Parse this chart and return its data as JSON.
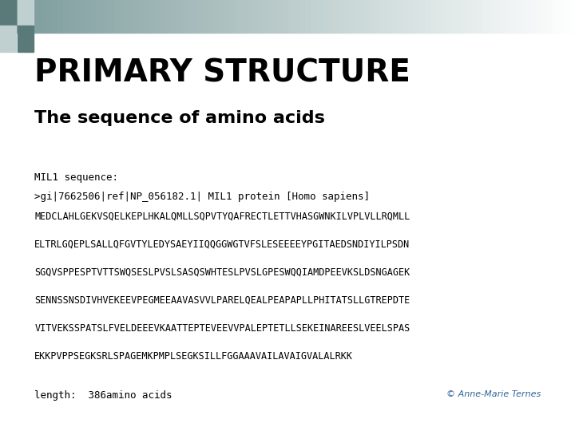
{
  "title": "PRIMARY STRUCTURE",
  "subtitle": "The sequence of amino acids",
  "sequence_label": "MIL1 sequence:",
  "fasta_header": ">gi|7662506|ref|NP_056182.1| MIL1 protein [Homo sapiens]",
  "sequence_lines": [
    "MEDCLAHLGEKVSQELKEPLHKALQMLLSQPVTYQAFRECTLETTVHASGWNKILVPLVLLRQMLL",
    "ELTRLGQEPLSALLQFGVTYLEDYSAEYIIQQGGWGTVFSLESEEEEYPGITAEDSNDIYILPSDN",
    "SGQVSPPESPTVTTSWQSESLPVSLSASQSWHTESLPVSLGPESWQQIAMDPEEVKSLDSNGAGEK",
    "SENNSSNSDIVHVEKEEVPEGMEEAAVASVVLPARELQEALPEAPAPLLPHITATSLLGTREPDTE",
    "VITVEKSSPATSLFVELDEEEVKAATTEPTEVEEVVPALEPTETLLSEKEINAREESLVEELSPAS",
    "EKKPVPPSEGKSRLSPAGEMKPMPLSEGKSILLFGGAAAVAILAVAIGVALALRKK"
  ],
  "length_text": "length:  386amino acids",
  "copyright_text": "© Anne-Marie Ternes",
  "bg_color": "#ffffff",
  "title_color": "#000000",
  "subtitle_color": "#000000",
  "mono_color": "#000000",
  "copyright_color": "#336699",
  "square_color1": "#5a7a7a",
  "square_color2": "#c0d0d0"
}
